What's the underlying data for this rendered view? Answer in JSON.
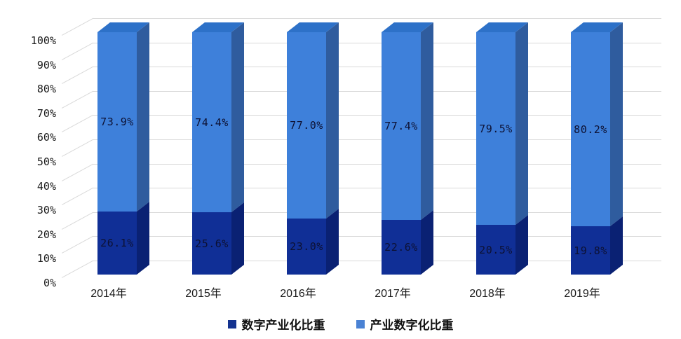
{
  "chart_data": {
    "type": "bar",
    "variant": "3d-stacked-100-percent-column",
    "title": "",
    "xlabel": "",
    "ylabel": "",
    "categories": [
      "2014年",
      "2015年",
      "2016年",
      "2017年",
      "2018年",
      "2019年"
    ],
    "series": [
      {
        "name": "数字产业化比重",
        "values": [
          26.1,
          25.6,
          23.0,
          22.6,
          20.5,
          19.8
        ],
        "labels": [
          "26.1%",
          "25.6%",
          "23.0%",
          "22.6%",
          "20.5%",
          "19.8%"
        ],
        "front_color": "#102f96",
        "side_color": "#0a2173",
        "top_color": "#0c2a85"
      },
      {
        "name": "产业数字化比重",
        "values": [
          73.9,
          74.4,
          77.0,
          77.4,
          79.5,
          80.2
        ],
        "labels": [
          "73.9%",
          "74.4%",
          "77.0%",
          "77.4%",
          "79.5%",
          "80.2%"
        ],
        "front_color": "#3e80da",
        "side_color": "#2f5c9e",
        "top_color": "#2d71c8"
      }
    ],
    "ylim": [
      0,
      100
    ],
    "y_tick_labels": [
      "0%",
      "10%",
      "20%",
      "30%",
      "40%",
      "50%",
      "60%",
      "70%",
      "80%",
      "90%",
      "100%"
    ],
    "grid": true,
    "gridline_color": "#d9d9d9",
    "data_label_color": "#0d1133",
    "legend_position": "bottom",
    "background_color": "#ffffff"
  },
  "legend": {
    "items": [
      {
        "label": "数字产业化比重",
        "color": "#14328f"
      },
      {
        "label": "产业数字化比重",
        "color": "#4a82d4"
      }
    ]
  }
}
